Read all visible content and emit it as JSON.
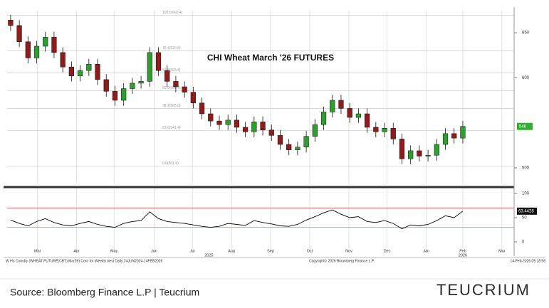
{
  "chart_data": [
    {
      "type": "candlestick",
      "title": "CHI Wheat March '26 FUTURES",
      "open": [
        664,
        658,
        640,
        622,
        635,
        645,
        628,
        612,
        602,
        608,
        615,
        598,
        585,
        575,
        588,
        594,
        596,
        628,
        608,
        596,
        590,
        584,
        572,
        560,
        552,
        548,
        553,
        545,
        540,
        551,
        542,
        536,
        526,
        520,
        523,
        535,
        548,
        562,
        575,
        566,
        556,
        560,
        545,
        540,
        544,
        532,
        510,
        519,
        513,
        514,
        526,
        538,
        533
      ],
      "high": [
        670,
        664,
        646,
        641,
        651,
        651,
        634,
        618,
        614,
        621,
        621,
        604,
        591,
        594,
        600,
        602,
        634,
        634,
        614,
        602,
        596,
        590,
        578,
        566,
        558,
        559,
        559,
        551,
        557,
        557,
        548,
        542,
        532,
        529,
        541,
        554,
        568,
        581,
        581,
        572,
        566,
        566,
        551,
        550,
        550,
        538,
        525,
        525,
        520,
        532,
        544,
        544,
        552
      ],
      "low": [
        652,
        634,
        616,
        616,
        629,
        622,
        606,
        596,
        596,
        602,
        592,
        579,
        569,
        569,
        582,
        588,
        590,
        602,
        590,
        584,
        578,
        566,
        554,
        546,
        542,
        542,
        539,
        534,
        534,
        536,
        530,
        520,
        514,
        514,
        517,
        529,
        542,
        556,
        560,
        550,
        550,
        539,
        534,
        534,
        526,
        504,
        504,
        507,
        507,
        508,
        520,
        527,
        527
      ],
      "close": [
        658,
        640,
        622,
        635,
        645,
        628,
        612,
        602,
        608,
        615,
        598,
        585,
        575,
        588,
        594,
        596,
        628,
        608,
        596,
        590,
        584,
        572,
        560,
        552,
        548,
        553,
        545,
        540,
        551,
        542,
        536,
        526,
        520,
        523,
        535,
        548,
        562,
        575,
        566,
        556,
        560,
        545,
        540,
        544,
        532,
        510,
        519,
        513,
        514,
        526,
        538,
        533,
        546
      ],
      "up_color": "#2f9e2f",
      "down_color": "#8e1c1c",
      "ylim": [
        482.6,
        674.5
      ],
      "yticks": [
        500,
        600,
        650
      ],
      "xlim": [
        -0.4,
        57.9
      ],
      "last_price": 546,
      "fib_levels": [
        {
          "value": 669.4,
          "label": "100.0(669.4)"
        },
        {
          "value": 629.9,
          "label": "76.4(629.9)"
        },
        {
          "value": 605.4,
          "label": "61.8(605.4)"
        },
        {
          "value": 585.7,
          "label": "50.0(585.7)"
        },
        {
          "value": 565.9,
          "label": "38.2(565.9)"
        },
        {
          "value": 541.4,
          "label": "23.6(541.4)"
        },
        {
          "value": 501.9,
          "label": "0.0(501.9)"
        }
      ]
    },
    {
      "type": "line",
      "values": [
        45,
        38,
        33,
        42,
        48,
        40,
        35,
        33,
        38,
        42,
        36,
        32,
        30,
        38,
        42,
        44,
        62,
        48,
        42,
        40,
        38,
        35,
        32,
        30,
        32,
        38,
        36,
        34,
        44,
        40,
        37,
        33,
        32,
        36,
        45,
        52,
        60,
        66,
        57,
        50,
        52,
        42,
        40,
        44,
        38,
        27,
        35,
        33,
        36,
        44,
        54,
        50,
        63.4428
      ],
      "color": "#000000",
      "ylim": [
        -7.4,
        110.3
      ],
      "yticks": [
        0,
        50,
        100
      ],
      "upper_band": 70,
      "lower_band": 30,
      "upper_color": "#e06060",
      "lower_color": "#7fd36f",
      "xlim": [
        -0.4,
        57.9
      ],
      "xticks": [
        {
          "value": 3.1,
          "label": "Mar"
        },
        {
          "value": 7.6,
          "label": "Apr"
        },
        {
          "value": 11.9,
          "label": "May"
        },
        {
          "value": 16.5,
          "label": "Jun"
        },
        {
          "value": 20.9,
          "label": "Jul"
        },
        {
          "value": 25.4,
          "label": "Aug"
        },
        {
          "value": 29.9,
          "label": "Sep"
        },
        {
          "value": 34.4,
          "label": "Oct"
        },
        {
          "value": 38.9,
          "label": "Nov"
        },
        {
          "value": 43.3,
          "label": "Dec"
        },
        {
          "value": 47.8,
          "label": "Jan"
        },
        {
          "value": 52.0,
          "label": "Feb"
        },
        {
          "value": 56.5,
          "label": "Mar"
        }
      ],
      "year_labels": [
        {
          "value": 22.8,
          "label": "2025"
        },
        {
          "value": 52.0,
          "label": "2026"
        }
      ]
    }
  ],
  "footer": {
    "left": "W Ho Comdty (WHEAT FUTURE(CBT) Mar26) Corn for Weekly best Daily 24JUN2024-14FEB2026",
    "center": "Copyright© 2026 Bloomberg Finance L.P.",
    "right": "14-Feb-2026 05:18:58"
  },
  "source": "Source: Bloomberg Finance L.P | Teucrium",
  "logo": "TEUCRIUM"
}
